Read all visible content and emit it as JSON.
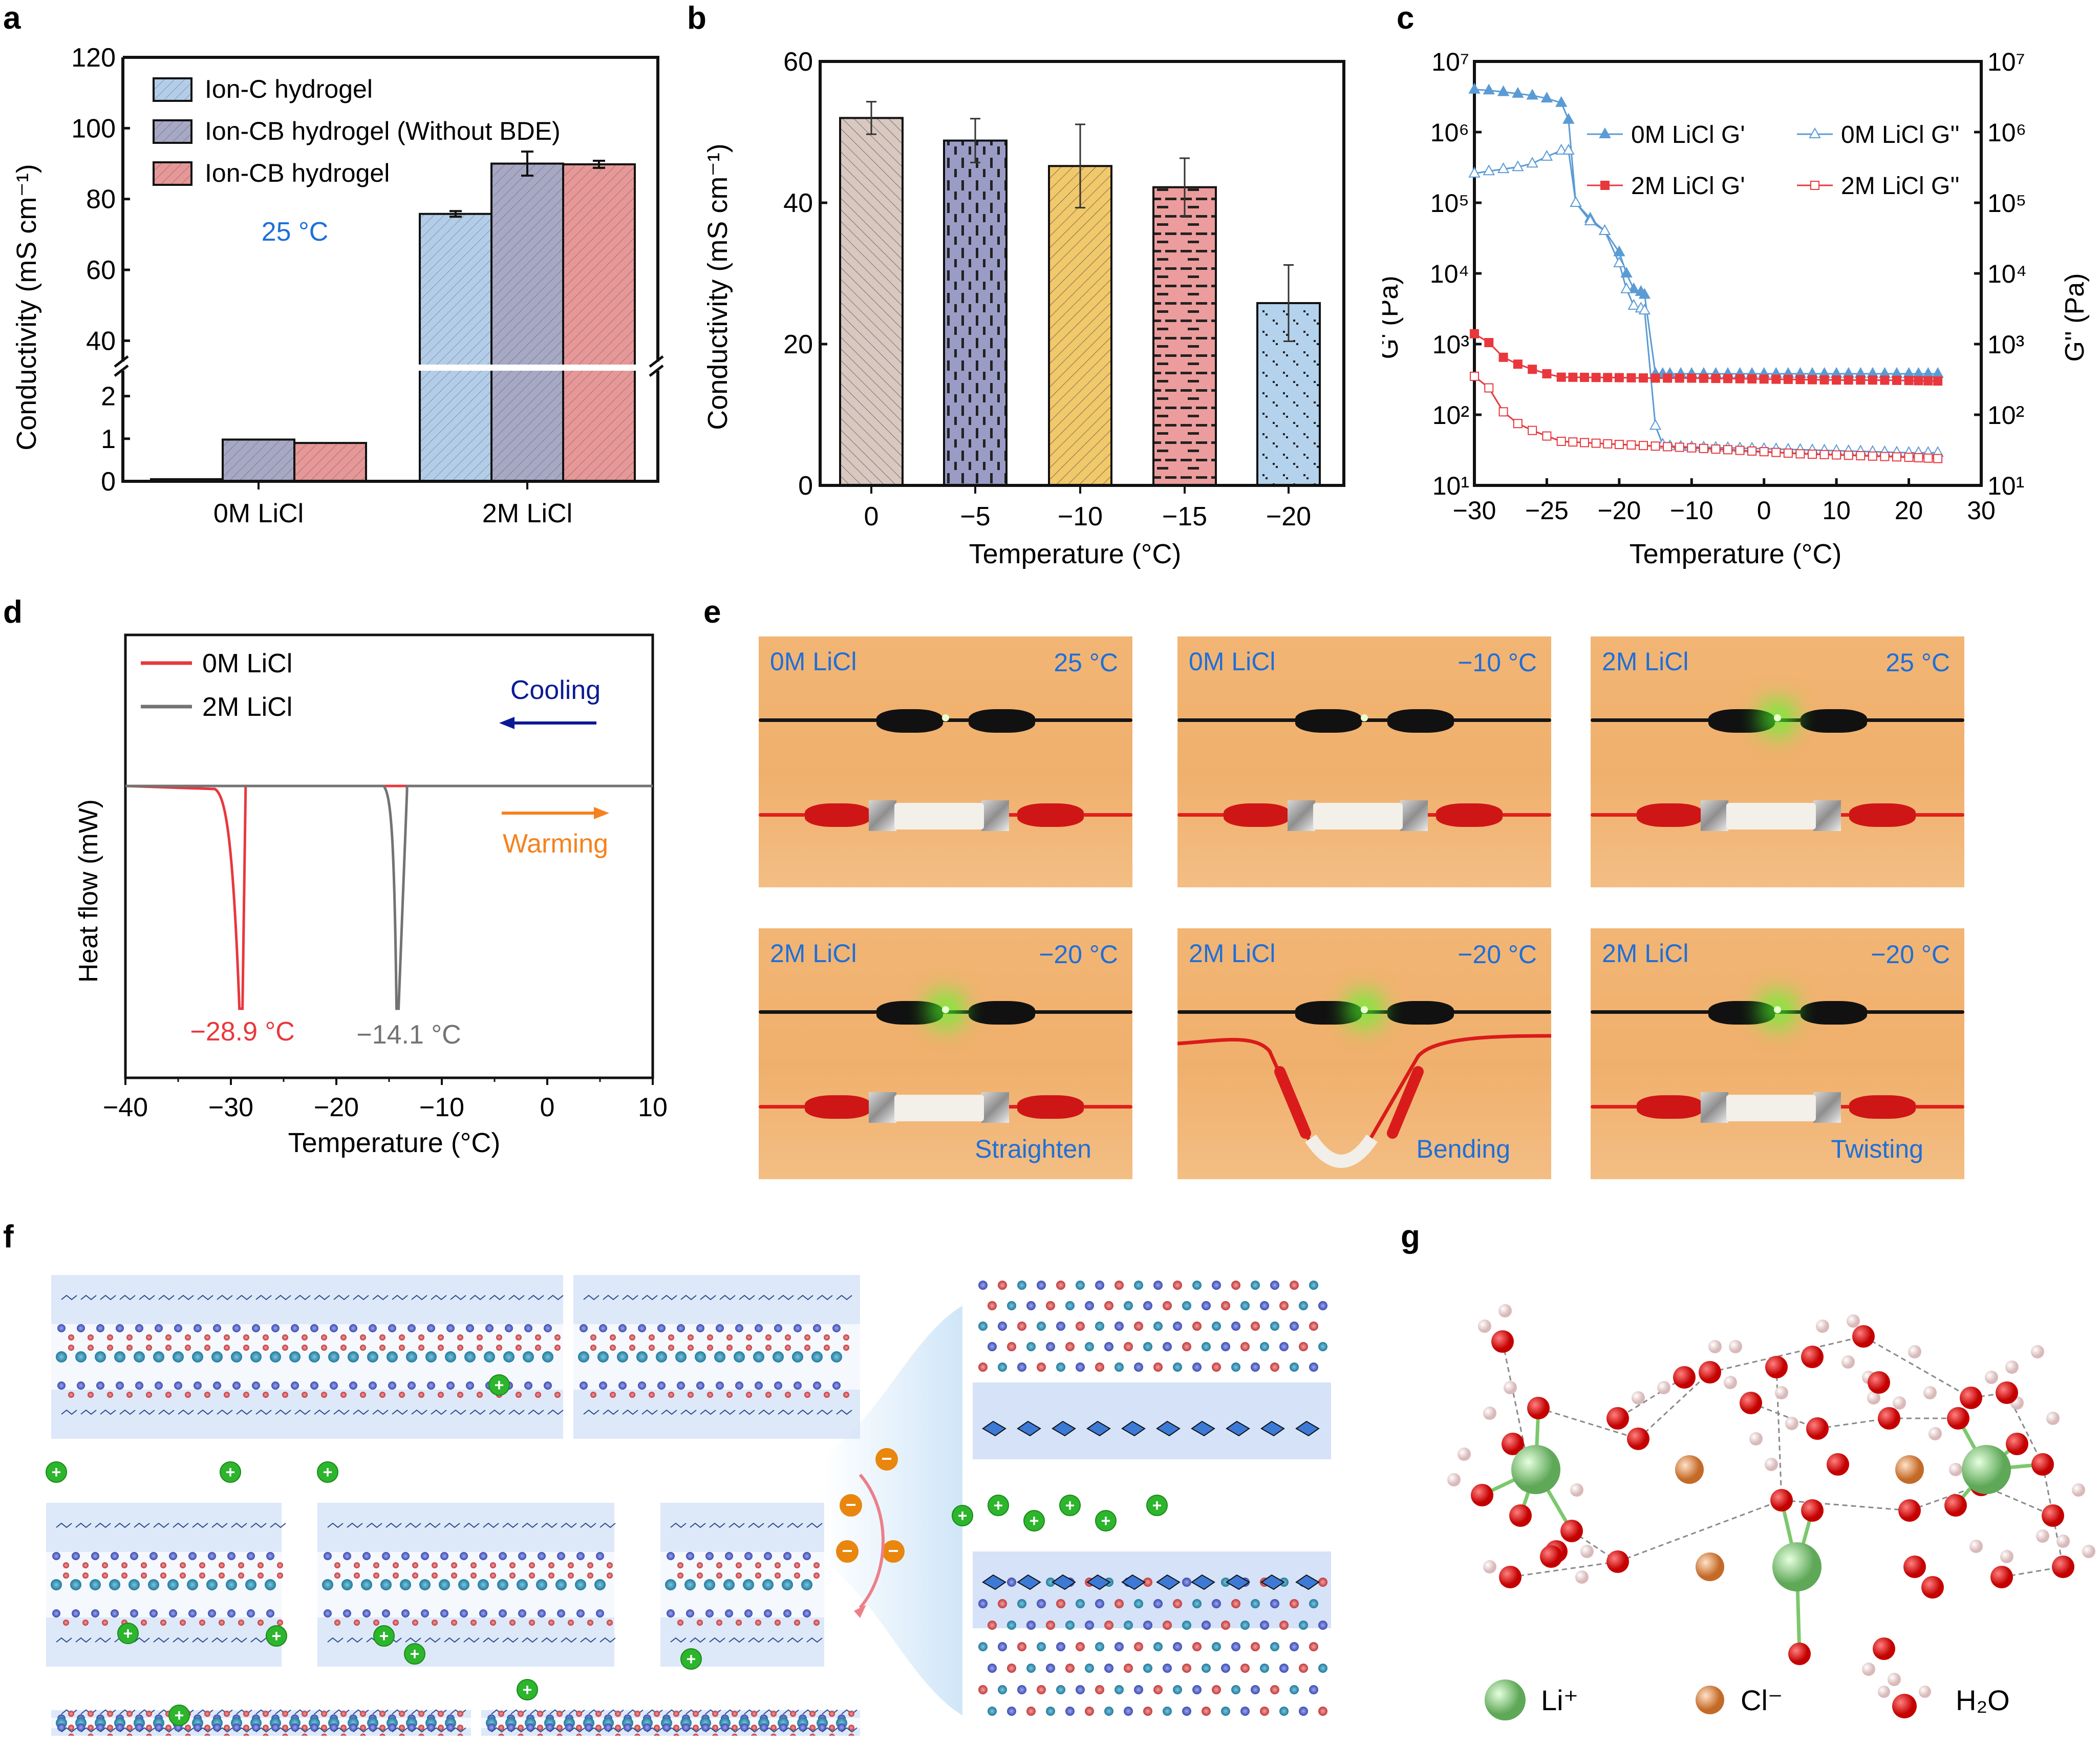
{
  "panels": {
    "a": {
      "letter": "a"
    },
    "b": {
      "letter": "b"
    },
    "c": {
      "letter": "c"
    },
    "d": {
      "letter": "d"
    },
    "e": {
      "letter": "e"
    },
    "f": {
      "letter": "f"
    },
    "g": {
      "letter": "g"
    }
  },
  "chart_data": [
    {
      "id": "a",
      "type": "bar",
      "title": "",
      "annotation": "25 °C",
      "annotation_color": "#1e6fd9",
      "xlabel": "",
      "ylabel": "Conductivity (mS cm⁻¹)",
      "categories": [
        "0M LiCl",
        "2M LiCl"
      ],
      "y_break": {
        "lower_range": [
          0,
          2.5
        ],
        "upper_range": [
          35,
          120
        ]
      },
      "y_ticks_lower": [
        "0",
        "1",
        "2"
      ],
      "y_ticks_upper": [
        "40",
        "60",
        "80",
        "100",
        "120"
      ],
      "series": [
        {
          "name": "Ion-C hydrogel",
          "color": "#b3cde9",
          "values": [
            0.05,
            75.8
          ],
          "errors": [
            0.0,
            0.8
          ]
        },
        {
          "name": "Ion-CB hydrogel (Without BDE)",
          "color": "#a7a8c4",
          "values": [
            0.98,
            90.0
          ],
          "errors": [
            0.02,
            3.4
          ]
        },
        {
          "name": "Ion-CB hydrogel",
          "color": "#e69797",
          "values": [
            0.9,
            89.8
          ],
          "errors": [
            0.02,
            1.0
          ]
        }
      ],
      "legend_position": "top-left"
    },
    {
      "id": "b",
      "type": "bar",
      "title": "",
      "xlabel": "Temperature (°C)",
      "ylabel": "Conductivity (mS cm⁻¹)",
      "categories": [
        "0",
        "−5",
        "−10",
        "−15",
        "−20"
      ],
      "values": [
        52.0,
        48.8,
        45.2,
        42.2,
        25.8
      ],
      "errors": [
        2.3,
        3.1,
        5.9,
        4.1,
        5.4
      ],
      "colors": [
        "#d8c8c0",
        "#9a9cc6",
        "#f1c86a",
        "#ec9c9c",
        "#b5d2ec"
      ],
      "patterns": [
        "back-diagonal",
        "vertical-dash",
        "diagonal",
        "horizontal-dash",
        "dots"
      ],
      "ylim": [
        0,
        60
      ],
      "y_ticks": [
        "0",
        "20",
        "40",
        "60"
      ]
    },
    {
      "id": "c",
      "type": "line",
      "title": "",
      "xlabel": "Temperature (°C)",
      "ylabel": "G' (Pa)",
      "ylabel_right": "G'' (Pa)",
      "yscale": "log",
      "ylim": [
        10,
        10000000
      ],
      "x_ticks": [
        "−30",
        "−25",
        "−20",
        "−10",
        "0",
        "10",
        "20",
        "30"
      ],
      "y_ticks": [
        "10¹",
        "10²",
        "10³",
        "10⁴",
        "10⁵",
        "10⁶",
        "10⁷"
      ],
      "legend_position": "top-right",
      "series": [
        {
          "name": "0M LiCl G'",
          "color": "#5b9bd5",
          "marker": "filled-triangle",
          "x": [
            -30,
            -29,
            -28,
            -27,
            -26,
            -25,
            -24,
            -23.5,
            -23,
            -22,
            -21,
            -20,
            -19,
            -18,
            -17,
            -16.5,
            -15,
            -14,
            -13,
            -10,
            -5,
            0,
            5,
            10,
            15,
            20,
            24
          ],
          "y": [
            4000000,
            3900000,
            3700000,
            3500000,
            3300000,
            3000000,
            2600000,
            1500000,
            100000,
            60000,
            40000,
            20000,
            10000,
            6000,
            5500,
            5000,
            380,
            380,
            380,
            380,
            380,
            380,
            380,
            380,
            380,
            380,
            380
          ]
        },
        {
          "name": "0M LiCl G''",
          "color": "#5b9bd5",
          "marker": "open-triangle",
          "x": [
            -30,
            -29,
            -28,
            -27,
            -26,
            -25,
            -24,
            -23.5,
            -23,
            -22,
            -21,
            -20,
            -19,
            -18,
            -17,
            -16.5,
            -15,
            -14,
            -13,
            -10,
            -5,
            0,
            5,
            10,
            15,
            20,
            24
          ],
          "y": [
            260000,
            280000,
            300000,
            320000,
            360000,
            450000,
            550000,
            550000,
            100000,
            55000,
            40000,
            14000,
            6000,
            3500,
            3200,
            3000,
            70,
            38,
            36,
            35,
            34,
            33,
            32,
            31,
            30,
            29,
            29
          ]
        },
        {
          "name": "2M LiCl G'",
          "color": "#e8383d",
          "marker": "filled-square",
          "x": [
            -30,
            -29,
            -28,
            -27,
            -26,
            -25,
            -24,
            -20,
            -15,
            -10,
            -5,
            0,
            5,
            10,
            15,
            20,
            24
          ],
          "y": [
            1400,
            1050,
            650,
            520,
            440,
            380,
            340,
            335,
            330,
            330,
            325,
            320,
            315,
            310,
            310,
            305,
            300
          ]
        },
        {
          "name": "2M LiCl G''",
          "color": "#e8383d",
          "marker": "open-square",
          "x": [
            -30,
            -29,
            -28,
            -27,
            -26,
            -25,
            -24,
            -20,
            -15,
            -10,
            -5,
            0,
            5,
            10,
            15,
            20,
            24
          ],
          "y": [
            350,
            240,
            110,
            75,
            60,
            50,
            42,
            38,
            36,
            34,
            32,
            30,
            28,
            27,
            26,
            25,
            24
          ]
        }
      ]
    },
    {
      "id": "d",
      "type": "line",
      "title": "",
      "xlabel": "Temperature (°C)",
      "ylabel": "Heat flow (mW)",
      "xlim": [
        -40,
        10
      ],
      "x_ticks": [
        "−40",
        "−30",
        "−20",
        "−10",
        "0",
        "10"
      ],
      "legend_position": "top-left",
      "series": [
        {
          "name": "0M LiCl",
          "color": "#e8383d",
          "peak_x": -28.9,
          "peak_label": "−28.9 °C"
        },
        {
          "name": "2M LiCl",
          "color": "#737373",
          "peak_x": -14.1,
          "peak_label": "−14.1 °C"
        }
      ],
      "annotations": [
        {
          "text": "Cooling",
          "color": "#0a1a96",
          "arrow": "left"
        },
        {
          "text": "Warming",
          "color": "#f5821f",
          "arrow": "right"
        }
      ]
    }
  ],
  "photos": [
    {
      "concentration": "0M LiCl",
      "temperature": "25 °C",
      "state": "",
      "led": "dim"
    },
    {
      "concentration": "0M LiCl",
      "temperature": "−10 °C",
      "state": "",
      "led": "dim"
    },
    {
      "concentration": "2M LiCl",
      "temperature": "25 °C",
      "state": "",
      "led": "bright"
    },
    {
      "concentration": "2M LiCl",
      "temperature": "−20 °C",
      "state": "Straighten",
      "led": "bright"
    },
    {
      "concentration": "2M LiCl",
      "temperature": "−20 °C",
      "state": "Bending",
      "led": "bright"
    },
    {
      "concentration": "2M LiCl",
      "temperature": "−20 °C",
      "state": "Twisting",
      "led": "bright"
    }
  ],
  "schematic_f": {
    "cation_symbol": "+",
    "anion_symbol": "−",
    "cation_color": "#2db52d",
    "anion_color": "#e9860e"
  },
  "legend_g": {
    "items": [
      {
        "label": "Li⁺",
        "color": "#86cc7a"
      },
      {
        "label": "Cl⁻",
        "color": "#d9803f"
      },
      {
        "label": "H₂O",
        "color": "#e31b1b"
      }
    ]
  }
}
